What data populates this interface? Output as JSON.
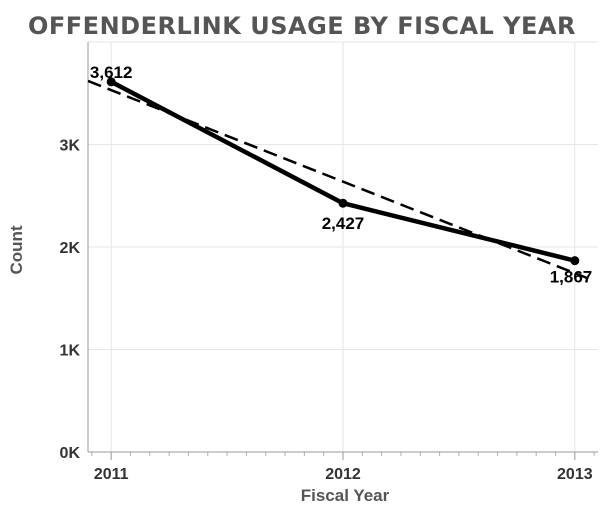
{
  "chart_data": {
    "type": "line",
    "title": "OFFENDERLINK USAGE BY FISCAL YEAR",
    "xlabel": "Fiscal Year",
    "ylabel": "Count",
    "x": [
      2011,
      2012,
      2013
    ],
    "x_tick_labels": [
      "2011",
      "2012",
      "2013"
    ],
    "xlim": [
      2010.9,
      2013.1
    ],
    "ylim": [
      0,
      4000
    ],
    "y_ticks": [
      0,
      1000,
      2000,
      3000
    ],
    "y_tick_labels": [
      "0K",
      "1K",
      "2K",
      "3K"
    ],
    "series": [
      {
        "values": [
          3612,
          2427,
          1867
        ],
        "labels": [
          "3,612",
          "2,427",
          "1,867"
        ]
      }
    ],
    "trend_line": {
      "style": "dashed",
      "start": [
        2010.9,
        3620
      ],
      "end": [
        2013.05,
        1700
      ]
    },
    "grid": true,
    "legend": "none",
    "colors": {
      "series": "#000000",
      "title": "#555555",
      "grid": "#e6e6e6"
    }
  }
}
